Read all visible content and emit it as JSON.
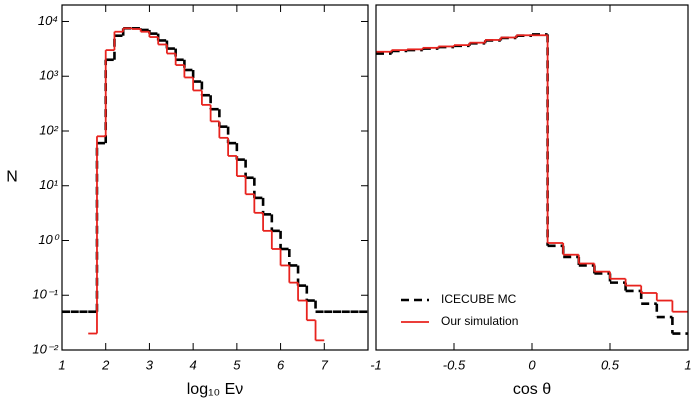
{
  "chart_data": [
    {
      "type": "histogram",
      "xlabel": "log₁₀ Eν",
      "ylabel": "N",
      "log_y": true,
      "xlim": [
        1,
        8
      ],
      "xticks": [
        1,
        2,
        3,
        4,
        5,
        6,
        7
      ],
      "ylim": [
        0.01,
        20000
      ],
      "yticks": [
        {
          "value": 0.01,
          "label": "10⁻²"
        },
        {
          "value": 0.1,
          "label": "10⁻¹"
        },
        {
          "value": 1,
          "label": "10⁰"
        },
        {
          "value": 10,
          "label": "10¹"
        },
        {
          "value": 100,
          "label": "10²"
        },
        {
          "value": 1000,
          "label": "10³"
        },
        {
          "value": 10000,
          "label": "10⁴"
        }
      ],
      "bins": [
        1.0,
        1.2,
        1.4,
        1.6,
        1.8,
        2.0,
        2.2,
        2.4,
        2.6,
        2.8,
        3.0,
        3.2,
        3.4,
        3.6,
        3.8,
        4.0,
        4.2,
        4.4,
        4.6,
        4.8,
        5.0,
        5.2,
        5.4,
        5.6,
        5.8,
        6.0,
        6.2,
        6.4,
        6.6,
        6.8,
        7.0,
        7.2,
        7.4,
        7.6,
        7.8,
        8.0
      ],
      "series": [
        {
          "name": "ICECUBE MC",
          "color": "#000000",
          "dashed": true,
          "values": [
            0.05,
            0.05,
            0.05,
            0.05,
            60,
            2000,
            5500,
            7500,
            7500,
            7000,
            6000,
            4500,
            3200,
            2000,
            1300,
            800,
            450,
            250,
            120,
            60,
            30,
            14,
            6,
            3,
            1.5,
            0.7,
            0.35,
            0.15,
            0.08,
            0.05,
            0.05,
            0.05,
            0.05,
            0.05,
            0.05
          ]
        },
        {
          "name": "Our simulation",
          "color": "#e8231e",
          "dashed": false,
          "values": [
            null,
            null,
            null,
            0.02,
            80,
            3000,
            6500,
            7500,
            7300,
            6500,
            5200,
            3800,
            2600,
            1600,
            950,
            550,
            300,
            150,
            75,
            35,
            15,
            7,
            3.2,
            1.5,
            0.7,
            0.35,
            0.17,
            0.08,
            0.035,
            0.015,
            null,
            null,
            null,
            null,
            null
          ]
        }
      ],
      "legend": null
    },
    {
      "type": "histogram",
      "xlabel": "cos θ",
      "log_y": true,
      "xlim": [
        -1,
        1
      ],
      "xticks": [
        -1,
        -0.5,
        0,
        0.5,
        1
      ],
      "ylim": [
        0.01,
        20000
      ],
      "bins": [
        -1.0,
        -0.9,
        -0.8,
        -0.7,
        -0.6,
        -0.5,
        -0.4,
        -0.3,
        -0.2,
        -0.1,
        0.0,
        0.1,
        0.2,
        0.3,
        0.4,
        0.5,
        0.6,
        0.7,
        0.8,
        0.9,
        1.0
      ],
      "series": [
        {
          "name": "ICECUBE MC",
          "color": "#000000",
          "dashed": true,
          "values": [
            2600,
            2900,
            3000,
            3200,
            3400,
            3600,
            4000,
            4500,
            5000,
            5500,
            5800,
            0.8,
            0.5,
            0.35,
            0.25,
            0.17,
            0.12,
            0.07,
            0.04,
            0.02
          ]
        },
        {
          "name": "Our simulation",
          "color": "#e8231e",
          "dashed": false,
          "values": [
            2800,
            3000,
            3100,
            3300,
            3500,
            3700,
            4100,
            4600,
            5100,
            5600,
            5600,
            0.9,
            0.55,
            0.38,
            0.27,
            0.2,
            0.15,
            0.11,
            0.08,
            0.05
          ]
        }
      ],
      "legend": "lower left"
    }
  ]
}
